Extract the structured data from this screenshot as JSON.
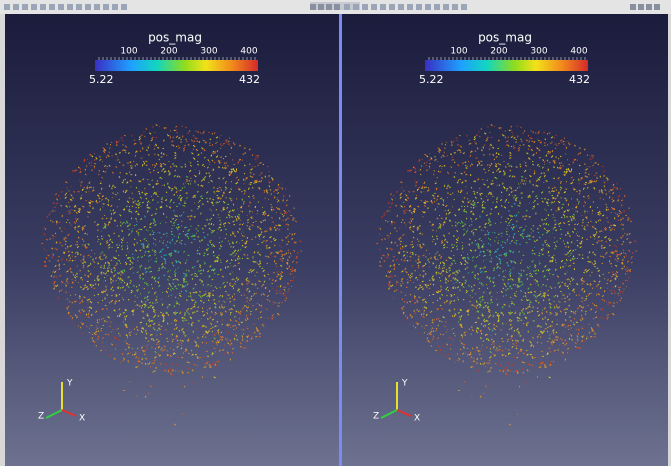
{
  "views": [
    {
      "colorbar": {
        "title": "pos_mag",
        "ticks": [
          "100",
          "200",
          "300",
          "400"
        ],
        "min": "5.22",
        "max": "432"
      },
      "axes": {
        "y": "Y",
        "z": "Z",
        "x": "X"
      }
    },
    {
      "colorbar": {
        "title": "pos_mag",
        "ticks": [
          "100",
          "200",
          "300",
          "400"
        ],
        "min": "5.22",
        "max": "432"
      },
      "axes": {
        "y": "Y",
        "z": "Z",
        "x": "X"
      }
    }
  ]
}
